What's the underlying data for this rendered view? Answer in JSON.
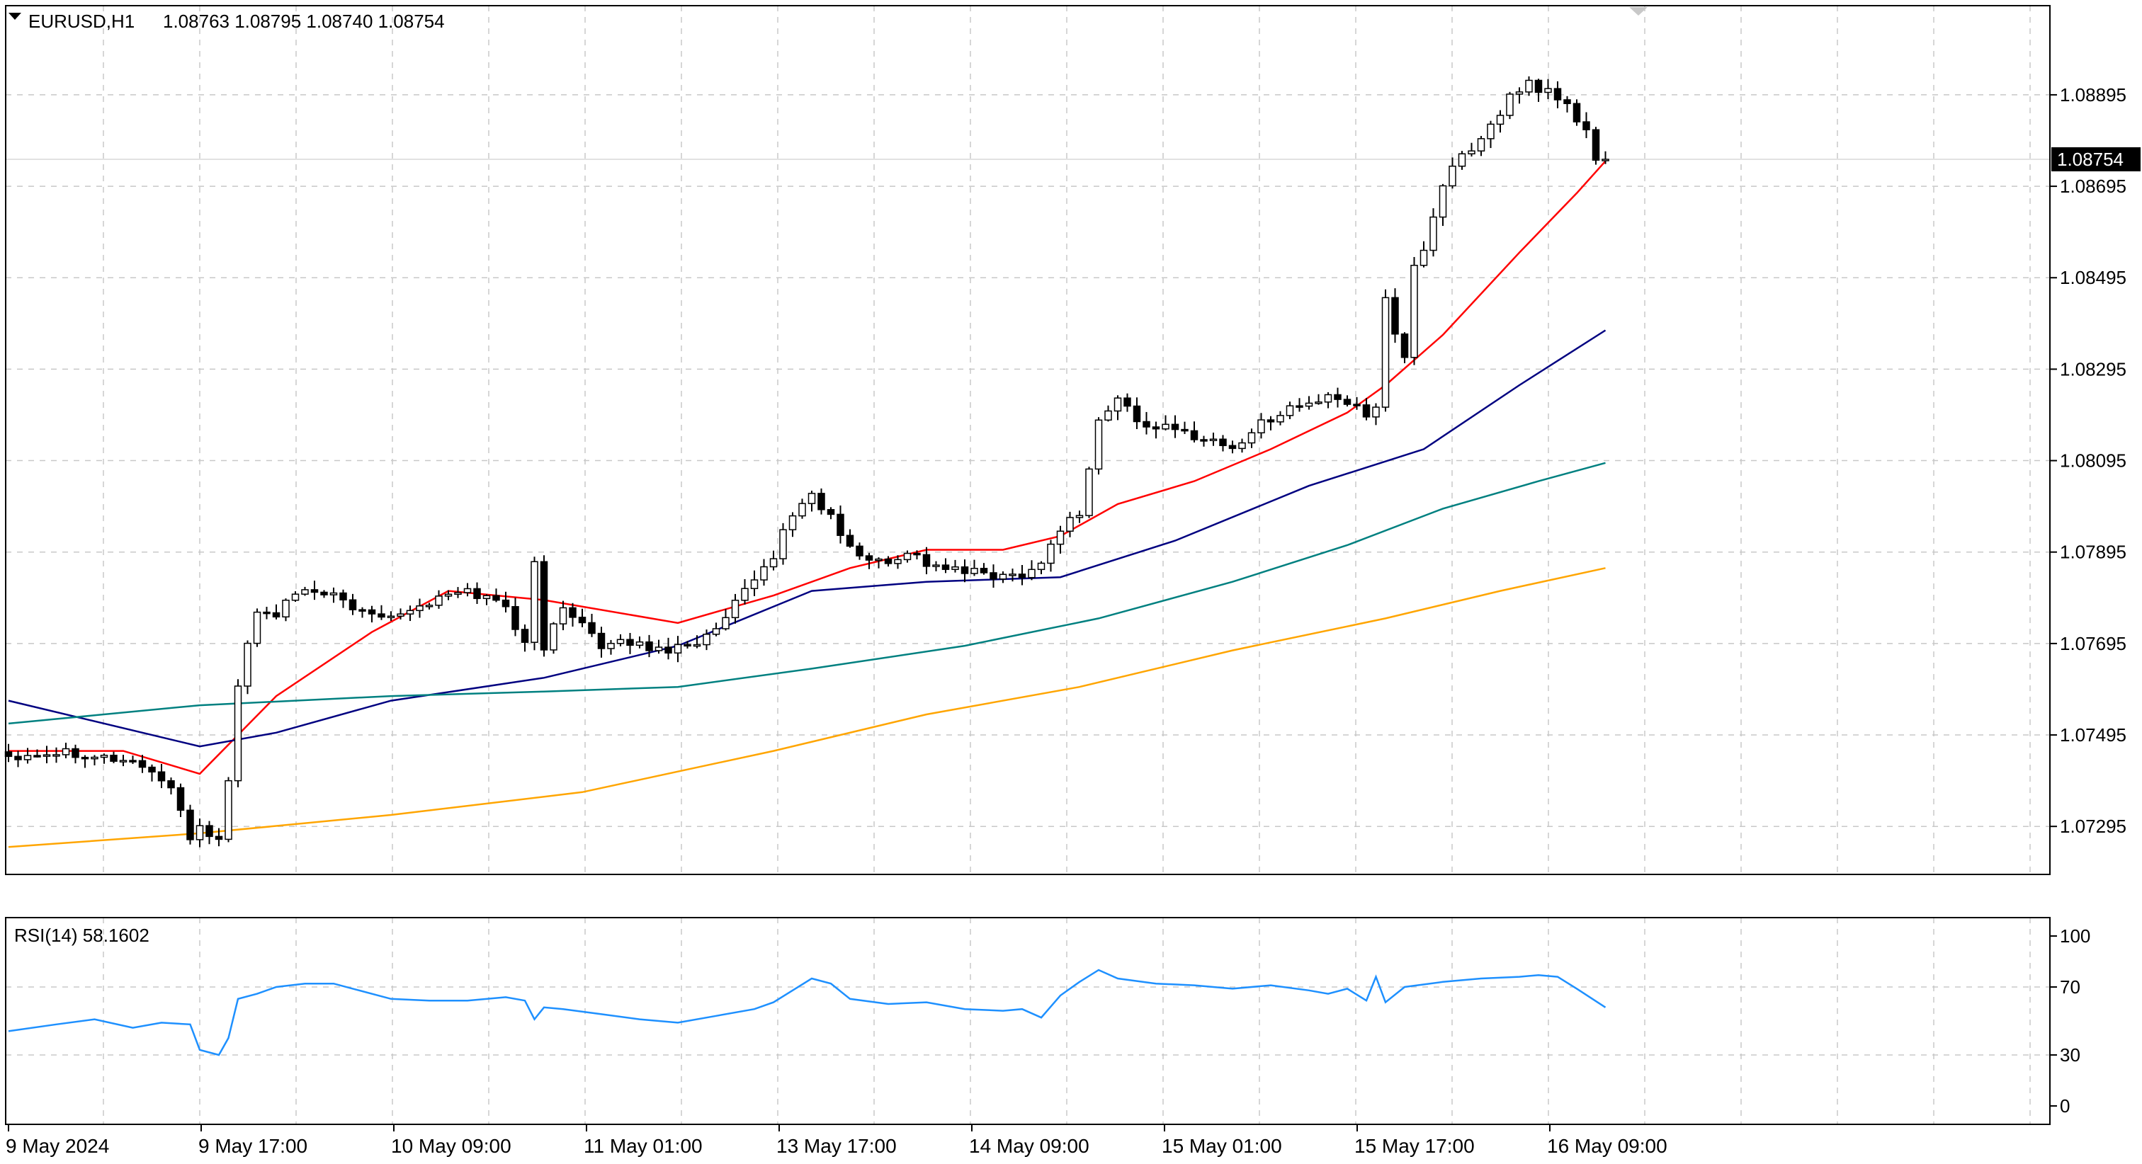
{
  "header": {
    "symbol_label": "EURUSD,H1",
    "ohlc_label": "1.08763 1.08795 1.08740 1.08754"
  },
  "rsi": {
    "label": "RSI(14) 58.1602",
    "levels": [
      "100",
      "70",
      "30",
      "0"
    ]
  },
  "current_price_label": "1.08754",
  "colors": {
    "background": "#ffffff",
    "grid": "#c8c8c8",
    "axis": "#000000",
    "candle": "#000000",
    "ma_fast": "#ff0000",
    "ma_medium": "#000080",
    "ma_slow": "#008080",
    "ma_slowest": "#ffa500",
    "rsi_line": "#1e90ff",
    "price_tag_bg": "#000000",
    "price_tag_text": "#ffffff"
  },
  "chart_data": {
    "type": "candlestick",
    "symbol": "EURUSD",
    "timeframe": "H1",
    "x_tick_labels": [
      "9 May 2024",
      "9 May 17:00",
      "10 May 09:00",
      "11 May 01:00",
      "13 May 17:00",
      "14 May 09:00",
      "15 May 01:00",
      "15 May 17:00",
      "16 May 09:00"
    ],
    "y_tick_labels": [
      "1.08895",
      "1.08695",
      "1.08495",
      "1.08295",
      "1.08095",
      "1.07895",
      "1.07695",
      "1.07495",
      "1.07295"
    ],
    "y_ticks": [
      1.08895,
      1.08695,
      1.08495,
      1.08295,
      1.08095,
      1.07895,
      1.07695,
      1.07495,
      1.07295
    ],
    "ylim": [
      1.0719,
      1.0909
    ],
    "current_price": 1.08754,
    "grid": true,
    "close_path": [
      [
        0,
        1.0745
      ],
      [
        6,
        1.0746
      ],
      [
        12,
        1.0744
      ],
      [
        14,
        1.0743
      ],
      [
        17,
        1.0738
      ],
      [
        18,
        1.0732
      ],
      [
        19,
        1.0727
      ],
      [
        20,
        1.073
      ],
      [
        22,
        1.0726
      ],
      [
        23,
        1.074
      ],
      [
        24,
        1.076
      ],
      [
        25,
        1.077
      ],
      [
        26,
        1.0776
      ],
      [
        28,
        1.0776
      ],
      [
        30,
        1.078
      ],
      [
        33,
        1.0781
      ],
      [
        36,
        1.0777
      ],
      [
        40,
        1.0776
      ],
      [
        42,
        1.0777
      ],
      [
        46,
        1.078
      ],
      [
        48,
        1.0781
      ],
      [
        52,
        1.0778
      ],
      [
        54,
        1.0769
      ],
      [
        55,
        1.0787
      ],
      [
        56,
        1.0769
      ],
      [
        58,
        1.0777
      ],
      [
        60,
        1.0775
      ],
      [
        62,
        1.0768
      ],
      [
        65,
        1.077
      ],
      [
        68,
        1.0768
      ],
      [
        70,
        1.0769
      ],
      [
        72,
        1.077
      ],
      [
        74,
        1.0772
      ],
      [
        76,
        1.0778
      ],
      [
        78,
        1.0783
      ],
      [
        80,
        1.0789
      ],
      [
        82,
        1.0798
      ],
      [
        84,
        1.0802
      ],
      [
        86,
        1.0797
      ],
      [
        88,
        1.079
      ],
      [
        90,
        1.0788
      ],
      [
        92,
        1.0787
      ],
      [
        94,
        1.079
      ],
      [
        96,
        1.0787
      ],
      [
        98,
        1.0786
      ],
      [
        100,
        1.0785
      ],
      [
        102,
        1.0785
      ],
      [
        104,
        1.0784
      ],
      [
        106,
        1.0785
      ],
      [
        108,
        1.0787
      ],
      [
        110,
        1.0795
      ],
      [
        112,
        1.0798
      ],
      [
        113,
        1.0808
      ],
      [
        114,
        1.0818
      ],
      [
        116,
        1.0823
      ],
      [
        117,
        1.0821
      ],
      [
        118,
        1.0818
      ],
      [
        120,
        1.0817
      ],
      [
        122,
        1.0816
      ],
      [
        124,
        1.0815
      ],
      [
        126,
        1.0814
      ],
      [
        128,
        1.0812
      ],
      [
        130,
        1.0816
      ],
      [
        132,
        1.0819
      ],
      [
        134,
        1.0821
      ],
      [
        136,
        1.0822
      ],
      [
        138,
        1.0823
      ],
      [
        140,
        1.0822
      ],
      [
        142,
        1.082
      ],
      [
        143,
        1.0822
      ],
      [
        144,
        1.0845
      ],
      [
        145,
        1.0838
      ],
      [
        146,
        1.0831
      ],
      [
        147,
        1.0852
      ],
      [
        148,
        1.0856
      ],
      [
        149,
        1.0863
      ],
      [
        150,
        1.087
      ],
      [
        152,
        1.0876
      ],
      [
        153,
        1.0878
      ],
      [
        154,
        1.088
      ],
      [
        155,
        1.0883
      ],
      [
        156,
        1.0885
      ],
      [
        157,
        1.089
      ],
      [
        159,
        1.0892
      ],
      [
        160,
        1.0889
      ],
      [
        161,
        1.089
      ],
      [
        163,
        1.0887
      ],
      [
        165,
        1.0881
      ],
      [
        166,
        1.0876
      ],
      [
        167,
        1.0875
      ]
    ],
    "moving_averages": [
      {
        "color_key": "ma_fast",
        "points": [
          [
            0,
            1.0746
          ],
          [
            12,
            1.0746
          ],
          [
            20,
            1.0741
          ],
          [
            28,
            1.0758
          ],
          [
            38,
            1.0772
          ],
          [
            46,
            1.0781
          ],
          [
            56,
            1.0779
          ],
          [
            70,
            1.0774
          ],
          [
            80,
            1.078
          ],
          [
            88,
            1.0786
          ],
          [
            96,
            1.079
          ],
          [
            104,
            1.079
          ],
          [
            110,
            1.0793
          ],
          [
            116,
            1.08
          ],
          [
            124,
            1.0805
          ],
          [
            132,
            1.0812
          ],
          [
            140,
            1.082
          ],
          [
            144,
            1.0826
          ],
          [
            150,
            1.0837
          ],
          [
            158,
            1.0855
          ],
          [
            164,
            1.0868
          ],
          [
            167,
            1.0875
          ]
        ]
      },
      {
        "color_key": "ma_medium",
        "points": [
          [
            0,
            1.0757
          ],
          [
            20,
            1.0747
          ],
          [
            28,
            1.075
          ],
          [
            40,
            1.0757
          ],
          [
            56,
            1.0762
          ],
          [
            70,
            1.0769
          ],
          [
            84,
            1.0781
          ],
          [
            96,
            1.0783
          ],
          [
            110,
            1.0784
          ],
          [
            122,
            1.0792
          ],
          [
            136,
            1.0804
          ],
          [
            148,
            1.0812
          ],
          [
            158,
            1.0826
          ],
          [
            167,
            1.0838
          ]
        ]
      },
      {
        "color_key": "ma_slow",
        "points": [
          [
            0,
            1.0752
          ],
          [
            20,
            1.0756
          ],
          [
            40,
            1.0758
          ],
          [
            56,
            1.0759
          ],
          [
            70,
            1.076
          ],
          [
            84,
            1.0764
          ],
          [
            100,
            1.0769
          ],
          [
            114,
            1.0775
          ],
          [
            128,
            1.0783
          ],
          [
            140,
            1.0791
          ],
          [
            150,
            1.0799
          ],
          [
            160,
            1.0805
          ],
          [
            167,
            1.0809
          ]
        ]
      },
      {
        "color_key": "ma_slowest",
        "points": [
          [
            0,
            1.0725
          ],
          [
            20,
            1.0728
          ],
          [
            40,
            1.0732
          ],
          [
            60,
            1.0737
          ],
          [
            80,
            1.0746
          ],
          [
            96,
            1.0754
          ],
          [
            112,
            1.076
          ],
          [
            128,
            1.0768
          ],
          [
            144,
            1.0775
          ],
          [
            156,
            1.0781
          ],
          [
            167,
            1.0786
          ]
        ]
      }
    ],
    "rsi_series": {
      "name": "RSI(14)",
      "last_value": 58.1602,
      "ylim": [
        0,
        100
      ],
      "levels": [
        100,
        70,
        30,
        0
      ],
      "points": [
        [
          0,
          44
        ],
        [
          5,
          48
        ],
        [
          9,
          51
        ],
        [
          13,
          46
        ],
        [
          16,
          49
        ],
        [
          19,
          48
        ],
        [
          20,
          33
        ],
        [
          22,
          30
        ],
        [
          23,
          40
        ],
        [
          24,
          63
        ],
        [
          26,
          66
        ],
        [
          28,
          70
        ],
        [
          31,
          72
        ],
        [
          34,
          72
        ],
        [
          36,
          69
        ],
        [
          40,
          63
        ],
        [
          44,
          62
        ],
        [
          48,
          62
        ],
        [
          52,
          64
        ],
        [
          54,
          62
        ],
        [
          55,
          51
        ],
        [
          56,
          58
        ],
        [
          58,
          57
        ],
        [
          62,
          54
        ],
        [
          66,
          51
        ],
        [
          70,
          49
        ],
        [
          74,
          53
        ],
        [
          78,
          57
        ],
        [
          80,
          61
        ],
        [
          84,
          75
        ],
        [
          86,
          72
        ],
        [
          88,
          63
        ],
        [
          92,
          60
        ],
        [
          96,
          61
        ],
        [
          100,
          57
        ],
        [
          104,
          56
        ],
        [
          106,
          57
        ],
        [
          108,
          52
        ],
        [
          110,
          65
        ],
        [
          112,
          73
        ],
        [
          114,
          80
        ],
        [
          116,
          75
        ],
        [
          120,
          72
        ],
        [
          124,
          71
        ],
        [
          128,
          69
        ],
        [
          132,
          71
        ],
        [
          136,
          68
        ],
        [
          138,
          66
        ],
        [
          140,
          69
        ],
        [
          142,
          62
        ],
        [
          143,
          76
        ],
        [
          144,
          61
        ],
        [
          146,
          70
        ],
        [
          150,
          73
        ],
        [
          154,
          75
        ],
        [
          158,
          76
        ],
        [
          160,
          77
        ],
        [
          162,
          76
        ],
        [
          164,
          69
        ],
        [
          167,
          58
        ]
      ]
    }
  }
}
